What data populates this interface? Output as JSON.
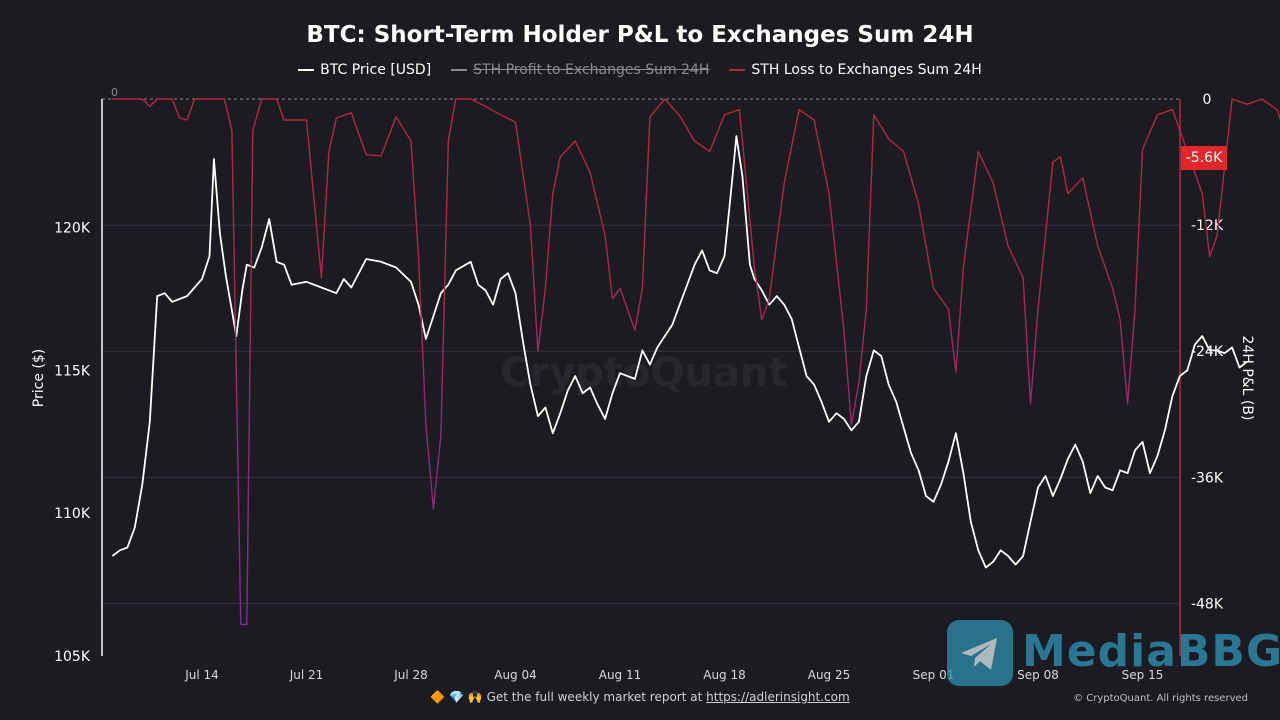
{
  "title": "BTC: Short-Term Holder P&L to Exchanges Sum 24H",
  "legend": [
    {
      "label": "BTC Price [USD]",
      "color": "#ffffff",
      "active": true
    },
    {
      "label": "STH Profit to Exchanges Sum 24H",
      "color": "#8a8a90",
      "active": false
    },
    {
      "label": "STH Loss to Exchanges Sum 24H",
      "color": "#b5283a",
      "active": true
    }
  ],
  "current_loss_label": "-5.6K",
  "footer": {
    "emojis": "🔶 💎 🙌",
    "text": "Get the full weekly market report at",
    "link": "https://adlerinsight.com"
  },
  "copyright": "© CryptoQuant. All rights reserved",
  "watermark_text": "CryptoQuant",
  "brand_watermark": "MediaBBG",
  "chart_data": {
    "type": "line",
    "x_tick_labels": [
      "Jul 14",
      "Jul 21",
      "Jul 28",
      "Aug 04",
      "Aug 11",
      "Aug 18",
      "Aug 25",
      "Sep 01",
      "Sep 08",
      "Sep 15"
    ],
    "x_range": [
      "Jul 08",
      "Sep 17"
    ],
    "left_axis": {
      "label": "Price ($)",
      "ticks": [
        "105K",
        "110K",
        "115K",
        "120K"
      ],
      "tick_values": [
        105000,
        110000,
        115000,
        120000
      ],
      "range": [
        105000,
        124500
      ]
    },
    "right_axis": {
      "label": "24H P&L (B)",
      "ticks": [
        "0",
        "-12K",
        "-24K",
        "-36K",
        "-48K"
      ],
      "tick_values": [
        0,
        -12000,
        -24000,
        -36000,
        -48000
      ],
      "range": [
        -53000,
        0
      ]
    },
    "zero_label": "0",
    "series": [
      {
        "name": "BTC Price [USD]",
        "axis": "left",
        "color": "#ffffff",
        "points": [
          [
            0,
            108500
          ],
          [
            0.5,
            108700
          ],
          [
            1,
            108800
          ],
          [
            1.5,
            109500
          ],
          [
            2,
            111000
          ],
          [
            2.5,
            113200
          ],
          [
            3,
            117600
          ],
          [
            3.5,
            117700
          ],
          [
            4,
            117400
          ],
          [
            5,
            117600
          ],
          [
            6,
            118200
          ],
          [
            6.5,
            119000
          ],
          [
            6.8,
            122400
          ],
          [
            7.2,
            119800
          ],
          [
            7.6,
            118300
          ],
          [
            8,
            117100
          ],
          [
            8.3,
            116200
          ],
          [
            8.7,
            117800
          ],
          [
            9,
            118700
          ],
          [
            9.5,
            118600
          ],
          [
            10,
            119300
          ],
          [
            10.5,
            120300
          ],
          [
            11,
            118800
          ],
          [
            11.5,
            118700
          ],
          [
            12,
            118000
          ],
          [
            13,
            118100
          ],
          [
            14,
            117900
          ],
          [
            15,
            117700
          ],
          [
            15.5,
            118200
          ],
          [
            16,
            117900
          ],
          [
            17,
            118900
          ],
          [
            18,
            118800
          ],
          [
            19,
            118600
          ],
          [
            20,
            118100
          ],
          [
            20.5,
            117300
          ],
          [
            21,
            116100
          ],
          [
            21.5,
            116900
          ],
          [
            22,
            117700
          ],
          [
            22.5,
            118000
          ],
          [
            23,
            118500
          ],
          [
            24,
            118800
          ],
          [
            24.5,
            118000
          ],
          [
            25,
            117800
          ],
          [
            25.5,
            117300
          ],
          [
            26,
            118200
          ],
          [
            26.5,
            118400
          ],
          [
            27,
            117700
          ],
          [
            27.5,
            116000
          ],
          [
            28,
            114500
          ],
          [
            28.5,
            113400
          ],
          [
            29,
            113700
          ],
          [
            29.5,
            112800
          ],
          [
            30,
            113500
          ],
          [
            30.5,
            114300
          ],
          [
            31,
            114800
          ],
          [
            31.5,
            114200
          ],
          [
            32,
            114400
          ],
          [
            32.5,
            113800
          ],
          [
            33,
            113300
          ],
          [
            33.5,
            114200
          ],
          [
            34,
            114900
          ],
          [
            35,
            114700
          ],
          [
            35.5,
            115700
          ],
          [
            36,
            115200
          ],
          [
            36.5,
            115800
          ],
          [
            37,
            116200
          ],
          [
            37.5,
            116600
          ],
          [
            38,
            117300
          ],
          [
            38.5,
            118000
          ],
          [
            39,
            118700
          ],
          [
            39.5,
            119200
          ],
          [
            40,
            118500
          ],
          [
            40.5,
            118400
          ],
          [
            41,
            119000
          ],
          [
            41.5,
            121600
          ],
          [
            41.8,
            123200
          ],
          [
            42.2,
            121800
          ],
          [
            42.7,
            118700
          ],
          [
            43,
            118200
          ],
          [
            43.5,
            117800
          ],
          [
            44,
            117300
          ],
          [
            44.5,
            117600
          ],
          [
            45,
            117300
          ],
          [
            45.5,
            116800
          ],
          [
            46,
            115800
          ],
          [
            46.5,
            114800
          ],
          [
            47,
            114500
          ],
          [
            47.5,
            113900
          ],
          [
            48,
            113200
          ],
          [
            48.5,
            113500
          ],
          [
            49,
            113300
          ],
          [
            49.5,
            112900
          ],
          [
            50,
            113200
          ],
          [
            50.5,
            114800
          ],
          [
            51,
            115700
          ],
          [
            51.5,
            115500
          ],
          [
            52,
            114500
          ],
          [
            52.5,
            113900
          ],
          [
            53,
            113000
          ],
          [
            53.5,
            112100
          ],
          [
            54,
            111500
          ],
          [
            54.5,
            110600
          ],
          [
            55,
            110400
          ],
          [
            55.5,
            111000
          ],
          [
            56,
            111800
          ],
          [
            56.5,
            112800
          ],
          [
            57,
            111400
          ],
          [
            57.5,
            109700
          ],
          [
            58,
            108700
          ],
          [
            58.5,
            108100
          ],
          [
            59,
            108300
          ],
          [
            59.5,
            108700
          ],
          [
            60,
            108500
          ],
          [
            60.5,
            108200
          ],
          [
            61,
            108500
          ],
          [
            61.5,
            109700
          ],
          [
            62,
            110900
          ],
          [
            62.5,
            111300
          ],
          [
            63,
            110600
          ],
          [
            63.5,
            111200
          ],
          [
            64,
            111900
          ],
          [
            64.5,
            112400
          ],
          [
            65,
            111800
          ],
          [
            65.5,
            110700
          ],
          [
            66,
            111300
          ],
          [
            66.5,
            110900
          ],
          [
            67,
            110800
          ],
          [
            67.5,
            111500
          ],
          [
            68,
            111400
          ],
          [
            68.5,
            112200
          ],
          [
            69,
            112500
          ],
          [
            69.5,
            111400
          ],
          [
            70,
            112000
          ],
          [
            70.5,
            112900
          ],
          [
            71,
            114100
          ],
          [
            71.5,
            114800
          ],
          [
            72,
            115000
          ],
          [
            72.5,
            115900
          ],
          [
            73,
            116200
          ],
          [
            73.5,
            115700
          ],
          [
            74,
            115700
          ],
          [
            74.5,
            115600
          ],
          [
            75,
            115800
          ],
          [
            75.5,
            115100
          ],
          [
            76,
            115300
          ]
        ]
      },
      {
        "name": "STH Loss to Exchanges Sum 24H",
        "axis": "right",
        "color": "#b5283a",
        "points": [
          [
            0,
            0
          ],
          [
            1,
            0
          ],
          [
            2,
            0
          ],
          [
            2.5,
            -700
          ],
          [
            3,
            0
          ],
          [
            4,
            0
          ],
          [
            4.5,
            -1800
          ],
          [
            5,
            -2000
          ],
          [
            5.5,
            0
          ],
          [
            6,
            0
          ],
          [
            7,
            0
          ],
          [
            7.5,
            0
          ],
          [
            8,
            -3000
          ],
          [
            8.6,
            -50000
          ],
          [
            9,
            -50000
          ],
          [
            9.4,
            -3000
          ],
          [
            10,
            0
          ],
          [
            11,
            0
          ],
          [
            11.5,
            -2000
          ],
          [
            12,
            -2000
          ],
          [
            13,
            -2000
          ],
          [
            14,
            -17000
          ],
          [
            14.5,
            -5000
          ],
          [
            15,
            -1800
          ],
          [
            16,
            -1300
          ],
          [
            17,
            -5300
          ],
          [
            18,
            -5400
          ],
          [
            19,
            -1700
          ],
          [
            20,
            -4000
          ],
          [
            20.5,
            -15000
          ],
          [
            21,
            -31000
          ],
          [
            21.5,
            -39000
          ],
          [
            22,
            -32000
          ],
          [
            22.5,
            -4000
          ],
          [
            23,
            0
          ],
          [
            24,
            0
          ],
          [
            25,
            -700
          ],
          [
            26,
            -1500
          ],
          [
            27,
            -2200
          ],
          [
            28,
            -12000
          ],
          [
            28.5,
            -24000
          ],
          [
            29,
            -18000
          ],
          [
            29.5,
            -9000
          ],
          [
            30,
            -5500
          ],
          [
            31,
            -4000
          ],
          [
            32,
            -7000
          ],
          [
            33,
            -13000
          ],
          [
            33.5,
            -19000
          ],
          [
            34,
            -18000
          ],
          [
            35,
            -22000
          ],
          [
            35.5,
            -18000
          ],
          [
            36,
            -1700
          ],
          [
            37,
            0
          ],
          [
            38,
            -1600
          ],
          [
            39,
            -4000
          ],
          [
            40,
            -5000
          ],
          [
            41,
            -1500
          ],
          [
            42,
            -1000
          ],
          [
            43,
            -16000
          ],
          [
            43.5,
            -21000
          ],
          [
            44,
            -19000
          ],
          [
            45,
            -8000
          ],
          [
            46,
            -1000
          ],
          [
            47,
            -2000
          ],
          [
            48,
            -9000
          ],
          [
            49,
            -22000
          ],
          [
            49.5,
            -31000
          ],
          [
            50,
            -27000
          ],
          [
            50.5,
            -20000
          ],
          [
            51,
            -1500
          ],
          [
            52,
            -3800
          ],
          [
            53,
            -5000
          ],
          [
            54,
            -10000
          ],
          [
            55,
            -18000
          ],
          [
            56,
            -20000
          ],
          [
            56.5,
            -26000
          ],
          [
            57,
            -16000
          ],
          [
            58,
            -5000
          ],
          [
            59,
            -8000
          ],
          [
            60,
            -14000
          ],
          [
            61,
            -17000
          ],
          [
            61.5,
            -29000
          ],
          [
            62,
            -20000
          ],
          [
            63,
            -6000
          ],
          [
            63.5,
            -5500
          ],
          [
            64,
            -9000
          ],
          [
            65,
            -7500
          ],
          [
            66,
            -14000
          ],
          [
            67,
            -18000
          ],
          [
            67.5,
            -21000
          ],
          [
            68,
            -29000
          ],
          [
            68.5,
            -20000
          ],
          [
            69,
            -4800
          ],
          [
            70,
            -1500
          ],
          [
            71,
            -1000
          ],
          [
            72,
            -5000
          ],
          [
            73,
            -9000
          ],
          [
            73.5,
            -15000
          ],
          [
            74,
            -13000
          ],
          [
            75,
            0
          ],
          [
            76,
            -500
          ],
          [
            77,
            0
          ],
          [
            78,
            -1000
          ],
          [
            78.5,
            -3000
          ],
          [
            79,
            -6700
          ],
          [
            79.5,
            -5600
          ]
        ]
      }
    ]
  }
}
